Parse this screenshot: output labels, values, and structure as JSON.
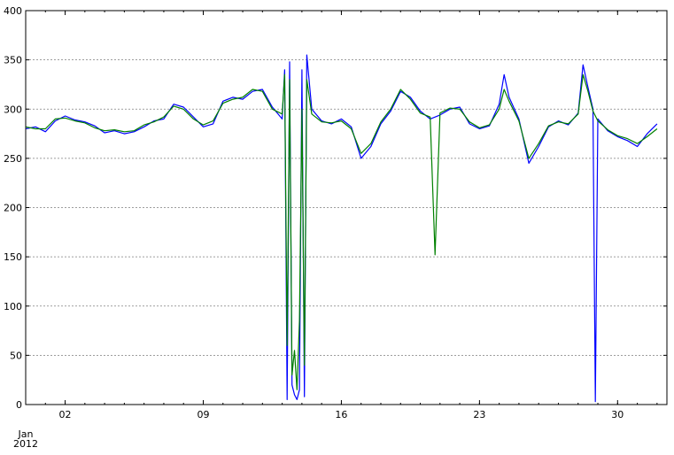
{
  "chart_data": {
    "type": "line",
    "title": "",
    "xlabel": "",
    "ylabel": "",
    "x_axis": {
      "type": "date",
      "range": [
        "2011-12-31",
        "2012-01-31"
      ],
      "major_ticks": [
        {
          "date": "2012-01-02",
          "label": "02"
        },
        {
          "date": "2012-01-09",
          "label": "09"
        },
        {
          "date": "2012-01-16",
          "label": "16"
        },
        {
          "date": "2012-01-23",
          "label": "23"
        },
        {
          "date": "2012-01-30",
          "label": "30"
        }
      ],
      "offset_label_month": "Jan",
      "offset_label_year": "2012"
    },
    "ylim": [
      0,
      400
    ],
    "y_ticks": [
      0,
      50,
      100,
      150,
      200,
      250,
      300,
      350,
      400
    ],
    "grid": "horizontal-dashed",
    "legend": "none",
    "series": [
      {
        "color": "#0000ff",
        "points": [
          [
            "2011-12-31T00:00",
            280
          ],
          [
            "2011-12-31T12:00",
            282
          ],
          [
            "2012-01-01T00:00",
            277
          ],
          [
            "2012-01-01T12:00",
            288
          ],
          [
            "2012-01-02T00:00",
            293
          ],
          [
            "2012-01-02T12:00",
            289
          ],
          [
            "2012-01-03T00:00",
            287
          ],
          [
            "2012-01-03T12:00",
            283
          ],
          [
            "2012-01-04T00:00",
            276
          ],
          [
            "2012-01-04T12:00",
            278
          ],
          [
            "2012-01-05T00:00",
            275
          ],
          [
            "2012-01-05T12:00",
            277
          ],
          [
            "2012-01-06T00:00",
            282
          ],
          [
            "2012-01-06T12:00",
            288
          ],
          [
            "2012-01-07T00:00",
            290
          ],
          [
            "2012-01-07T12:00",
            305
          ],
          [
            "2012-01-08T00:00",
            302
          ],
          [
            "2012-01-08T12:00",
            292
          ],
          [
            "2012-01-09T00:00",
            282
          ],
          [
            "2012-01-09T12:00",
            285
          ],
          [
            "2012-01-10T00:00",
            308
          ],
          [
            "2012-01-10T12:00",
            312
          ],
          [
            "2012-01-11T00:00",
            310
          ],
          [
            "2012-01-11T12:00",
            318
          ],
          [
            "2012-01-12T00:00",
            320
          ],
          [
            "2012-01-12T12:00",
            302
          ],
          [
            "2012-01-13T00:00",
            290
          ],
          [
            "2012-01-13T03:00",
            340
          ],
          [
            "2012-01-13T06:00",
            5
          ],
          [
            "2012-01-13T09:00",
            348
          ],
          [
            "2012-01-13T12:00",
            20
          ],
          [
            "2012-01-13T15:00",
            10
          ],
          [
            "2012-01-13T18:00",
            5
          ],
          [
            "2012-01-13T21:00",
            15
          ],
          [
            "2012-01-14T00:00",
            340
          ],
          [
            "2012-01-14T03:00",
            8
          ],
          [
            "2012-01-14T06:00",
            355
          ],
          [
            "2012-01-14T12:00",
            300
          ],
          [
            "2012-01-15T00:00",
            288
          ],
          [
            "2012-01-15T12:00",
            285
          ],
          [
            "2012-01-16T00:00",
            290
          ],
          [
            "2012-01-16T12:00",
            282
          ],
          [
            "2012-01-17T00:00",
            250
          ],
          [
            "2012-01-17T12:00",
            262
          ],
          [
            "2012-01-18T00:00",
            285
          ],
          [
            "2012-01-18T12:00",
            298
          ],
          [
            "2012-01-19T00:00",
            318
          ],
          [
            "2012-01-19T12:00",
            312
          ],
          [
            "2012-01-20T00:00",
            298
          ],
          [
            "2012-01-20T12:00",
            290
          ],
          [
            "2012-01-21T00:00",
            294
          ],
          [
            "2012-01-21T12:00",
            300
          ],
          [
            "2012-01-22T00:00",
            302
          ],
          [
            "2012-01-22T12:00",
            285
          ],
          [
            "2012-01-23T00:00",
            280
          ],
          [
            "2012-01-23T12:00",
            283
          ],
          [
            "2012-01-24T00:00",
            305
          ],
          [
            "2012-01-24T06:00",
            335
          ],
          [
            "2012-01-24T12:00",
            312
          ],
          [
            "2012-01-25T00:00",
            290
          ],
          [
            "2012-01-25T12:00",
            245
          ],
          [
            "2012-01-26T00:00",
            262
          ],
          [
            "2012-01-26T12:00",
            282
          ],
          [
            "2012-01-27T00:00",
            288
          ],
          [
            "2012-01-27T12:00",
            284
          ],
          [
            "2012-01-28T00:00",
            296
          ],
          [
            "2012-01-28T06:00",
            345
          ],
          [
            "2012-01-28T12:00",
            322
          ],
          [
            "2012-01-28T18:00",
            300
          ],
          [
            "2012-01-28T21:00",
            3
          ],
          [
            "2012-01-29T00:00",
            290
          ],
          [
            "2012-01-29T12:00",
            278
          ],
          [
            "2012-01-30T00:00",
            272
          ],
          [
            "2012-01-30T12:00",
            268
          ],
          [
            "2012-01-31T00:00",
            262
          ],
          [
            "2012-01-31T12:00",
            275
          ],
          [
            "2012-02-01T00:00",
            285
          ]
        ]
      },
      {
        "color": "#008000",
        "points": [
          [
            "2011-12-31T00:00",
            282
          ],
          [
            "2011-12-31T12:00",
            280
          ],
          [
            "2012-01-01T00:00",
            280
          ],
          [
            "2012-01-01T12:00",
            290
          ],
          [
            "2012-01-02T00:00",
            291
          ],
          [
            "2012-01-02T12:00",
            288
          ],
          [
            "2012-01-03T00:00",
            286
          ],
          [
            "2012-01-03T12:00",
            281
          ],
          [
            "2012-01-04T00:00",
            278
          ],
          [
            "2012-01-04T12:00",
            279
          ],
          [
            "2012-01-05T00:00",
            277
          ],
          [
            "2012-01-05T12:00",
            278
          ],
          [
            "2012-01-06T00:00",
            284
          ],
          [
            "2012-01-06T12:00",
            287
          ],
          [
            "2012-01-07T00:00",
            292
          ],
          [
            "2012-01-07T12:00",
            303
          ],
          [
            "2012-01-08T00:00",
            300
          ],
          [
            "2012-01-08T12:00",
            290
          ],
          [
            "2012-01-09T00:00",
            284
          ],
          [
            "2012-01-09T12:00",
            288
          ],
          [
            "2012-01-10T00:00",
            306
          ],
          [
            "2012-01-10T12:00",
            310
          ],
          [
            "2012-01-11T00:00",
            312
          ],
          [
            "2012-01-11T12:00",
            320
          ],
          [
            "2012-01-12T00:00",
            318
          ],
          [
            "2012-01-12T12:00",
            300
          ],
          [
            "2012-01-13T00:00",
            295
          ],
          [
            "2012-01-13T03:00",
            335
          ],
          [
            "2012-01-13T06:00",
            60
          ],
          [
            "2012-01-13T09:00",
            330
          ],
          [
            "2012-01-13T12:00",
            30
          ],
          [
            "2012-01-13T15:00",
            55
          ],
          [
            "2012-01-13T18:00",
            15
          ],
          [
            "2012-01-13T21:00",
            85
          ],
          [
            "2012-01-14T00:00",
            300
          ],
          [
            "2012-01-14T03:00",
            40
          ],
          [
            "2012-01-14T06:00",
            330
          ],
          [
            "2012-01-14T12:00",
            295
          ],
          [
            "2012-01-15T00:00",
            287
          ],
          [
            "2012-01-15T12:00",
            286
          ],
          [
            "2012-01-16T00:00",
            288
          ],
          [
            "2012-01-16T12:00",
            280
          ],
          [
            "2012-01-17T00:00",
            255
          ],
          [
            "2012-01-17T12:00",
            265
          ],
          [
            "2012-01-18T00:00",
            287
          ],
          [
            "2012-01-18T12:00",
            300
          ],
          [
            "2012-01-19T00:00",
            320
          ],
          [
            "2012-01-19T12:00",
            310
          ],
          [
            "2012-01-20T00:00",
            296
          ],
          [
            "2012-01-20T12:00",
            292
          ],
          [
            "2012-01-20T18:00",
            152
          ],
          [
            "2012-01-21T00:00",
            296
          ],
          [
            "2012-01-21T12:00",
            301
          ],
          [
            "2012-01-22T00:00",
            300
          ],
          [
            "2012-01-22T12:00",
            287
          ],
          [
            "2012-01-23T00:00",
            281
          ],
          [
            "2012-01-23T12:00",
            284
          ],
          [
            "2012-01-24T00:00",
            300
          ],
          [
            "2012-01-24T06:00",
            320
          ],
          [
            "2012-01-24T12:00",
            308
          ],
          [
            "2012-01-25T00:00",
            288
          ],
          [
            "2012-01-25T12:00",
            250
          ],
          [
            "2012-01-26T00:00",
            265
          ],
          [
            "2012-01-26T12:00",
            283
          ],
          [
            "2012-01-27T00:00",
            287
          ],
          [
            "2012-01-27T12:00",
            285
          ],
          [
            "2012-01-28T00:00",
            295
          ],
          [
            "2012-01-28T06:00",
            335
          ],
          [
            "2012-01-28T12:00",
            318
          ],
          [
            "2012-01-28T18:00",
            298
          ],
          [
            "2012-01-29T00:00",
            288
          ],
          [
            "2012-01-29T12:00",
            279
          ],
          [
            "2012-01-30T00:00",
            273
          ],
          [
            "2012-01-30T12:00",
            270
          ],
          [
            "2012-01-31T00:00",
            265
          ],
          [
            "2012-01-31T12:00",
            272
          ],
          [
            "2012-02-01T00:00",
            280
          ]
        ]
      }
    ]
  }
}
